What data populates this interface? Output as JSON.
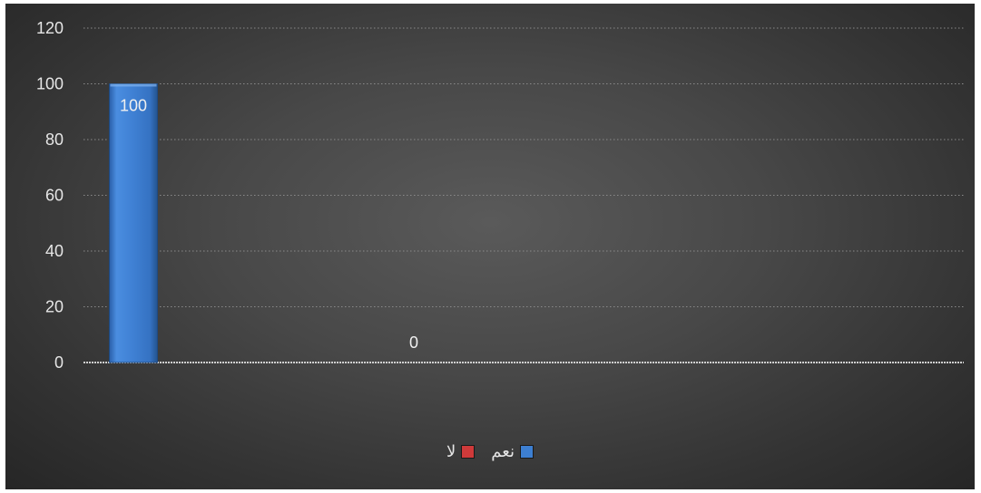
{
  "chart_data": {
    "type": "bar",
    "categories": [
      "",
      ""
    ],
    "series": [
      {
        "name": "نعم",
        "values": [
          100,
          null
        ],
        "color": "#3d7fd1"
      },
      {
        "name": "لا",
        "values": [
          null,
          0
        ],
        "color": "#cf3a3a"
      }
    ],
    "data_labels": [
      "100",
      "0"
    ],
    "title": "",
    "xlabel": "",
    "ylabel": "",
    "ylim": [
      0,
      120
    ],
    "yticks": [
      0,
      20,
      40,
      60,
      80,
      100,
      120
    ],
    "grid": true,
    "legend": "bottom"
  }
}
